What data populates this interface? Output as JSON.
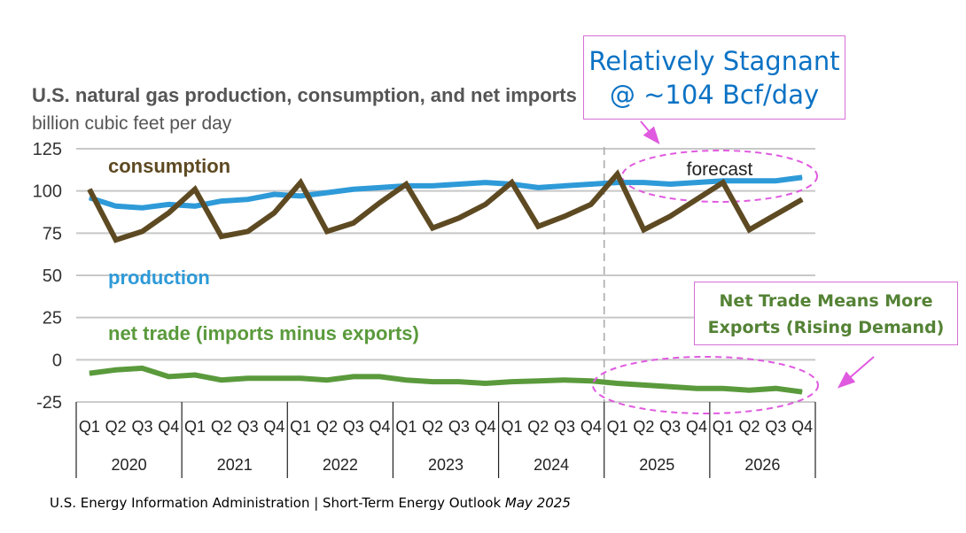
{
  "header": {
    "title": "U.S. natural gas production, consumption, and net imports",
    "subtitle": "billion cubic feet per day"
  },
  "callouts": {
    "stagnant": {
      "line1": "Relatively Stagnant",
      "line2": "@ ~104 Bcf/day"
    },
    "net_trade": {
      "line1": "Net Trade Means More",
      "line2": "Exports (Rising Demand)"
    }
  },
  "footer": {
    "source": "U.S. Energy Information Administration | Short-Term Energy Outlook",
    "edition": "May 2025"
  },
  "colors": {
    "consumption": "#5e4a22",
    "production": "#2e9ad8",
    "net_trade": "#5a9a3c",
    "grid": "#c8c8c8",
    "tick_text": "#333333",
    "forecast_ellipse": "#e05ae0",
    "arrow": "#e05ae0"
  },
  "chart_data": {
    "type": "line",
    "title": "U.S. natural gas production, consumption, and net imports",
    "ylabel": "billion cubic feet per day",
    "ylim": [
      -25,
      125
    ],
    "yticks": [
      125,
      100,
      75,
      50,
      25,
      0,
      -25
    ],
    "grid": true,
    "forecast_label": "forecast",
    "forecast_starts_at": "2025 Q1",
    "quarter_labels": [
      "Q1",
      "Q2",
      "Q3",
      "Q4"
    ],
    "years": [
      "2020",
      "2021",
      "2022",
      "2023",
      "2024",
      "2025",
      "2026"
    ],
    "categories": [
      "2020 Q1",
      "2020 Q2",
      "2020 Q3",
      "2020 Q4",
      "2021 Q1",
      "2021 Q2",
      "2021 Q3",
      "2021 Q4",
      "2022 Q1",
      "2022 Q2",
      "2022 Q3",
      "2022 Q4",
      "2023 Q1",
      "2023 Q2",
      "2023 Q3",
      "2023 Q4",
      "2024 Q1",
      "2024 Q2",
      "2024 Q3",
      "2024 Q4",
      "2025 Q1",
      "2025 Q2",
      "2025 Q3",
      "2025 Q4",
      "2026 Q1",
      "2026 Q2",
      "2026 Q3",
      "2026 Q4"
    ],
    "series": [
      {
        "name": "consumption",
        "label_text": "consumption",
        "values": [
          101,
          71,
          76,
          87,
          101,
          73,
          76,
          87,
          105,
          76,
          81,
          93,
          104,
          78,
          84,
          92,
          105,
          79,
          85,
          92,
          110,
          77,
          85,
          95,
          105,
          77,
          86,
          95
        ]
      },
      {
        "name": "production",
        "label_text": "production",
        "values": [
          96,
          91,
          90,
          92,
          91,
          94,
          95,
          98,
          97,
          99,
          101,
          102,
          103,
          103,
          104,
          105,
          104,
          102,
          103,
          104,
          105,
          105,
          104,
          105,
          106,
          106,
          106,
          108
        ]
      },
      {
        "name": "net trade",
        "label_text": "net trade (imports minus exports)",
        "values": [
          -8,
          -6,
          -5,
          -10,
          -9,
          -12,
          -11,
          -11,
          -11,
          -12,
          -10,
          -10,
          -12,
          -13,
          -13,
          -14,
          -13,
          -12.5,
          -12,
          -12.5,
          -14,
          -15,
          -16,
          -17,
          -17,
          -18,
          -17,
          -19
        ]
      }
    ]
  }
}
